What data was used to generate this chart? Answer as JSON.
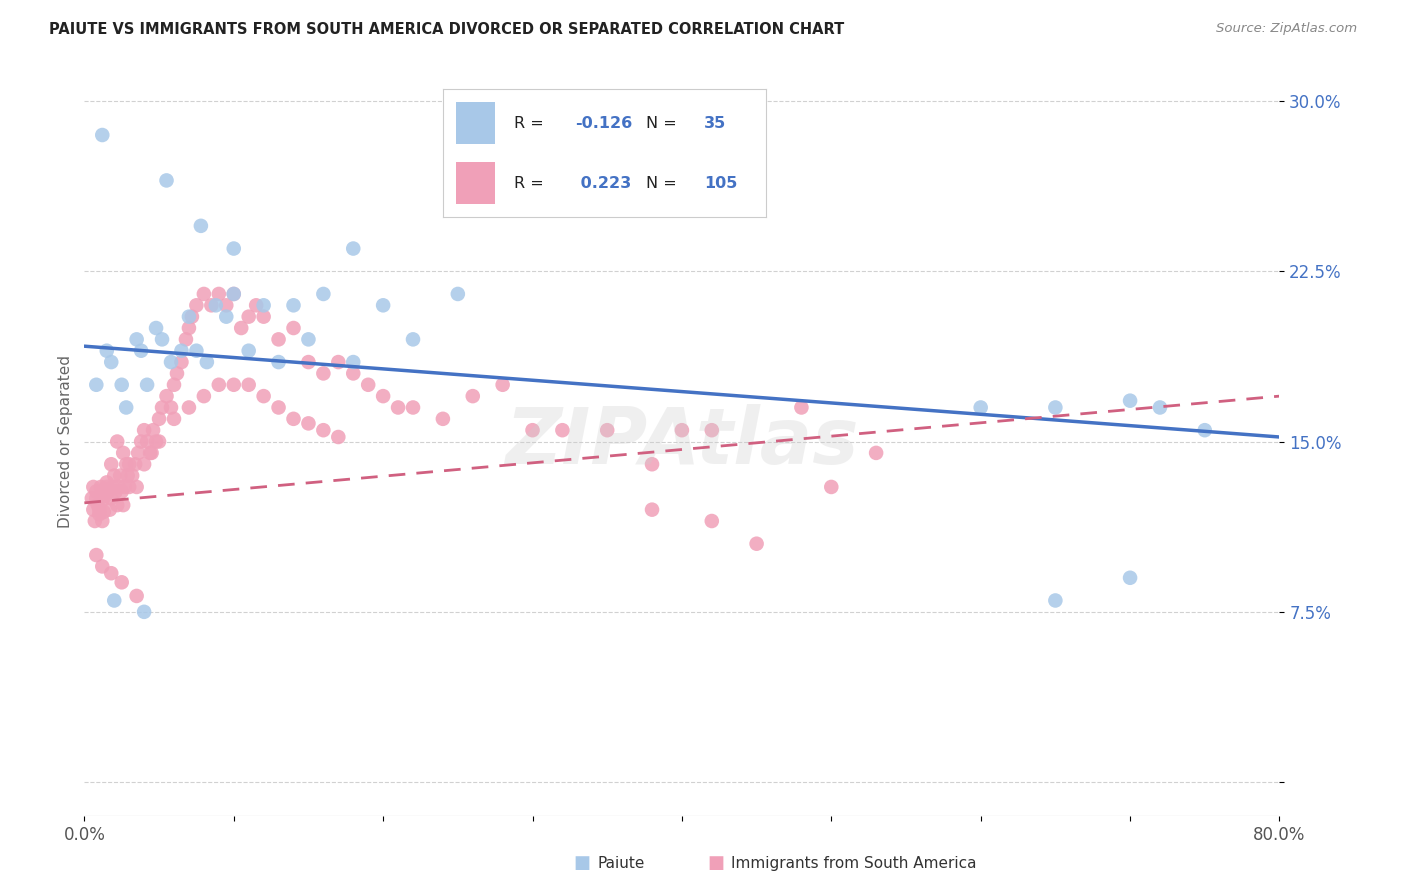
{
  "title": "PAIUTE VS IMMIGRANTS FROM SOUTH AMERICA DIVORCED OR SEPARATED CORRELATION CHART",
  "source": "Source: ZipAtlas.com",
  "ylabel": "Divorced or Separated",
  "yticks": [
    0.0,
    0.075,
    0.15,
    0.225,
    0.3
  ],
  "ytick_labels": [
    "",
    "7.5%",
    "15.0%",
    "22.5%",
    "30.0%"
  ],
  "xlim": [
    0.0,
    0.8
  ],
  "ylim": [
    -0.015,
    0.315
  ],
  "legend_R1": "-0.126",
  "legend_N1": "35",
  "legend_R2": "0.223",
  "legend_N2": "105",
  "color_paiute": "#a8c8e8",
  "color_immigrants": "#f0a0b8",
  "color_line_paiute": "#4472c4",
  "color_line_immigrants": "#d06080",
  "paiute_x": [
    0.008,
    0.015,
    0.018,
    0.025,
    0.028,
    0.035,
    0.038,
    0.042,
    0.048,
    0.052,
    0.058,
    0.065,
    0.07,
    0.075,
    0.082,
    0.088,
    0.095,
    0.1,
    0.11,
    0.12,
    0.13,
    0.14,
    0.15,
    0.16,
    0.18,
    0.2,
    0.22,
    0.25,
    0.6,
    0.65,
    0.7,
    0.72,
    0.75,
    0.02,
    0.04
  ],
  "paiute_y": [
    0.175,
    0.19,
    0.185,
    0.175,
    0.165,
    0.195,
    0.19,
    0.175,
    0.2,
    0.195,
    0.185,
    0.19,
    0.205,
    0.19,
    0.185,
    0.21,
    0.205,
    0.215,
    0.19,
    0.21,
    0.185,
    0.21,
    0.195,
    0.215,
    0.185,
    0.21,
    0.195,
    0.215,
    0.165,
    0.165,
    0.168,
    0.165,
    0.155,
    0.08,
    0.075
  ],
  "paiute_outliers_x": [
    0.012,
    0.055,
    0.078,
    0.1,
    0.18,
    0.65,
    0.7
  ],
  "paiute_outliers_y": [
    0.285,
    0.265,
    0.245,
    0.235,
    0.235,
    0.08,
    0.09
  ],
  "imm_cluster_x": [
    0.005,
    0.006,
    0.007,
    0.008,
    0.009,
    0.01,
    0.011,
    0.012,
    0.013,
    0.014,
    0.015,
    0.016,
    0.017,
    0.018,
    0.019,
    0.02,
    0.021,
    0.022,
    0.023,
    0.024,
    0.025,
    0.026,
    0.027,
    0.028,
    0.029,
    0.03,
    0.032,
    0.034,
    0.036,
    0.038,
    0.04,
    0.042,
    0.044,
    0.046,
    0.048,
    0.05,
    0.052,
    0.055,
    0.058,
    0.06,
    0.062,
    0.065,
    0.068,
    0.07,
    0.072,
    0.075,
    0.08,
    0.085,
    0.09,
    0.095,
    0.1,
    0.105,
    0.11,
    0.115,
    0.12,
    0.13,
    0.14,
    0.15,
    0.16,
    0.17,
    0.18,
    0.19,
    0.2,
    0.21,
    0.22,
    0.24,
    0.26,
    0.28,
    0.3,
    0.32,
    0.35,
    0.38,
    0.4,
    0.42,
    0.45,
    0.48,
    0.5,
    0.53,
    0.006,
    0.008,
    0.01,
    0.012,
    0.015,
    0.018,
    0.022,
    0.026,
    0.03,
    0.035,
    0.04,
    0.045,
    0.05,
    0.06,
    0.07,
    0.08,
    0.09,
    0.1,
    0.11,
    0.12,
    0.13,
    0.14,
    0.15,
    0.16,
    0.17
  ],
  "imm_cluster_y": [
    0.125,
    0.12,
    0.115,
    0.128,
    0.122,
    0.118,
    0.13,
    0.124,
    0.119,
    0.126,
    0.132,
    0.128,
    0.12,
    0.125,
    0.13,
    0.135,
    0.128,
    0.122,
    0.13,
    0.135,
    0.128,
    0.122,
    0.13,
    0.14,
    0.135,
    0.13,
    0.135,
    0.14,
    0.145,
    0.15,
    0.155,
    0.15,
    0.145,
    0.155,
    0.15,
    0.16,
    0.165,
    0.17,
    0.165,
    0.175,
    0.18,
    0.185,
    0.195,
    0.2,
    0.205,
    0.21,
    0.215,
    0.21,
    0.215,
    0.21,
    0.215,
    0.2,
    0.205,
    0.21,
    0.205,
    0.195,
    0.2,
    0.185,
    0.18,
    0.185,
    0.18,
    0.175,
    0.17,
    0.165,
    0.165,
    0.16,
    0.17,
    0.175,
    0.155,
    0.155,
    0.155,
    0.12,
    0.155,
    0.155,
    0.105,
    0.165,
    0.13,
    0.145,
    0.13,
    0.125,
    0.12,
    0.115,
    0.13,
    0.14,
    0.15,
    0.145,
    0.14,
    0.13,
    0.14,
    0.145,
    0.15,
    0.16,
    0.165,
    0.17,
    0.175,
    0.175,
    0.175,
    0.17,
    0.165,
    0.16,
    0.158,
    0.155,
    0.152
  ],
  "imm_outliers_x": [
    0.008,
    0.012,
    0.018,
    0.025,
    0.035,
    0.38,
    0.42
  ],
  "imm_outliers_y": [
    0.1,
    0.095,
    0.092,
    0.088,
    0.082,
    0.14,
    0.115
  ],
  "line_paiute_x0": 0.0,
  "line_paiute_x1": 0.8,
  "line_paiute_y0": 0.192,
  "line_paiute_y1": 0.152,
  "line_imm_x0": 0.0,
  "line_imm_x1": 0.8,
  "line_imm_y0": 0.123,
  "line_imm_y1": 0.17
}
